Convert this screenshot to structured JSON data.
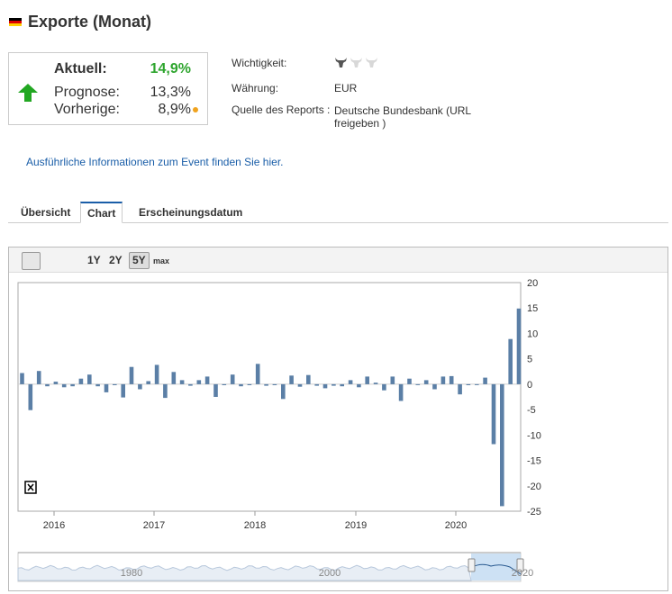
{
  "header": {
    "title": "Exporte (Monat)",
    "flag_colors": [
      "#000000",
      "#dd0000",
      "#ffce00"
    ]
  },
  "summary": {
    "actual_label": "Aktuell:",
    "actual_value": "14,9%",
    "forecast_label": "Prognose:",
    "forecast_value": "13,3%",
    "previous_label": "Vorherige:",
    "previous_value": "8,9%",
    "actual_color": "#2ea52e",
    "trend": "up-arrow-icon"
  },
  "meta": {
    "importance_label": "Wichtigkeit:",
    "importance_level": 1,
    "currency_label": "Währung:",
    "currency_value": "EUR",
    "source_label": "Quelle des Reports :",
    "source_value": "Deutsche Bundesbank (URL freigeben )"
  },
  "info_link": "Ausführliche Informationen zum Event finden Sie hier.",
  "tabs": [
    {
      "label": "Übersicht",
      "active": false
    },
    {
      "label": "Chart",
      "active": true
    },
    {
      "label": "Erscheinungsdatum",
      "active": false
    }
  ],
  "toolbar": {
    "ranges": [
      "1Y",
      "2Y",
      "5Y",
      "max"
    ],
    "active_range": "5Y"
  },
  "chart_data": {
    "type": "bar",
    "title": "Exporte (Monat)",
    "ylim": [
      -25,
      20
    ],
    "yticks": [
      20,
      15,
      10,
      5,
      0,
      -5,
      -10,
      -15,
      -20,
      -25
    ],
    "xticks": [
      "2016",
      "2017",
      "2018",
      "2019",
      "2020"
    ],
    "values": [
      2.2,
      -5.1,
      2.6,
      -0.4,
      0.5,
      -0.6,
      -0.4,
      1.1,
      1.9,
      -0.4,
      -1.6,
      -0.2,
      -2.6,
      3.4,
      -1.0,
      0.6,
      3.8,
      -2.7,
      2.4,
      0.8,
      -0.3,
      0.8,
      1.5,
      -2.5,
      -0.2,
      1.9,
      -0.4,
      -0.2,
      4.0,
      -0.3,
      -0.2,
      -2.9,
      1.7,
      -0.5,
      1.8,
      -0.3,
      -0.8,
      -0.3,
      -0.4,
      0.8,
      -0.6,
      1.5,
      0.3,
      -1.2,
      1.5,
      -3.3,
      1.1,
      -0.1,
      0.8,
      -1.0,
      1.5,
      1.6,
      -2.0,
      -0.2,
      -0.1,
      1.3,
      -11.8,
      -24.0,
      8.9,
      14.9
    ],
    "bar_color": "#5b7fa6",
    "navigator": {
      "labels": [
        "1980",
        "2000",
        "2020"
      ]
    }
  }
}
